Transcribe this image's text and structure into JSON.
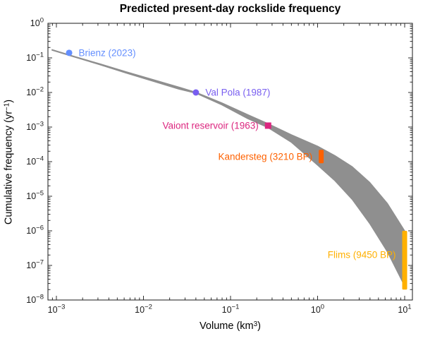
{
  "figure": {
    "title": "Predicted present-day rockslide frequency",
    "xlabel": {
      "pre": "Volume (km",
      "sup": "3",
      "post": ")"
    },
    "ylabel": {
      "pre": "Cumulative frequency (yr",
      "sup": "−1",
      "post": ")"
    }
  },
  "chart_data": {
    "type": "scatter",
    "title": "Predicted present-day rockslide frequency",
    "xlabel": "Volume (km^3)",
    "ylabel": "Cumulative frequency (yr^-1)",
    "x_scale": "log",
    "y_scale": "log",
    "xlim": [
      0.001,
      10
    ],
    "ylim": [
      1e-08,
      1
    ],
    "x_tick_exponents": [
      -3,
      -2,
      -1,
      0,
      1
    ],
    "y_tick_exponents": [
      0,
      -1,
      -2,
      -3,
      -4,
      -5,
      -6,
      -7,
      -8
    ],
    "grid": false,
    "legend": false,
    "band": {
      "label": "prediction uncertainty envelope",
      "color": "#8f8f8f",
      "x": [
        0.00089,
        0.00158,
        0.00316,
        0.00631,
        0.0126,
        0.0251,
        0.0398,
        0.0794,
        0.158,
        0.269,
        0.501,
        1.0,
        1.58,
        2.51,
        3.98,
        6.31,
        10.0
      ],
      "y_upper": [
        0.174,
        0.112,
        0.0676,
        0.0398,
        0.024,
        0.0145,
        0.0102,
        0.00501,
        0.00229,
        0.00126,
        0.0006,
        0.00028,
        0.00015,
        7.1e-05,
        2.5e-05,
        6.3e-06,
        1e-06
      ],
      "y_lower": [
        0.166,
        0.107,
        0.0631,
        0.0363,
        0.0214,
        0.0126,
        0.00955,
        0.00437,
        0.00174,
        0.00096,
        0.00036,
        7.9e-05,
        2.8e-05,
        7.9e-06,
        1.6e-06,
        2.5e-07,
        2.5e-08
      ]
    },
    "events": [
      {
        "label": "Brienz (2023)",
        "marker": "circle",
        "color": "#648fff",
        "x": 0.0014,
        "y": 0.14,
        "label_side": "right"
      },
      {
        "label": "Val Pola (1987)",
        "marker": "circle",
        "color": "#785ef0",
        "x": 0.04,
        "y": 0.01,
        "label_side": "right"
      },
      {
        "label": "Vaiont reservoir (1963)",
        "marker": "square",
        "color": "#dc267f",
        "x": 0.27,
        "y": 0.0011,
        "label_side": "left"
      },
      {
        "label": "Kandersteg (3210 BP)",
        "marker": "bar",
        "color": "#fe6100",
        "x": 1.1,
        "y_range": [
          9e-05,
          0.00022
        ],
        "label_y": 0.00014,
        "label_side": "left"
      },
      {
        "label": "Flims (9450 BP)",
        "marker": "bar",
        "color": "#ffb000",
        "x": 10,
        "y_range": [
          2e-08,
          1e-06
        ],
        "label_y": 2e-07,
        "label_side": "left"
      }
    ]
  }
}
